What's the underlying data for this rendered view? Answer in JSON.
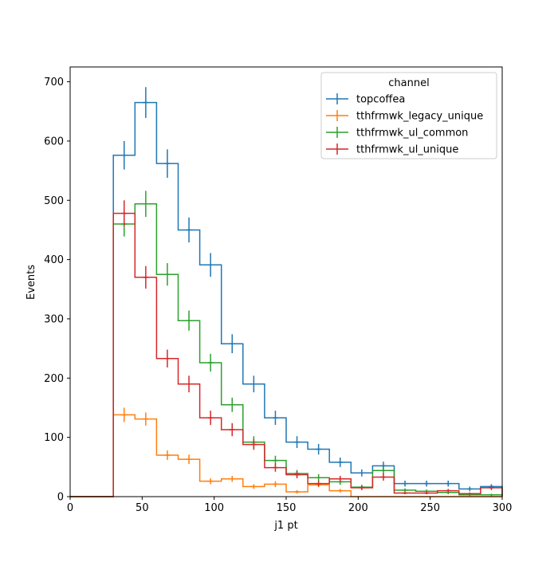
{
  "chart_data": {
    "type": "histogram",
    "title": "",
    "xlabel": "j1 pt",
    "ylabel": "Events",
    "xlim": [
      0,
      300
    ],
    "ylim": [
      0,
      725
    ],
    "xticks": [
      0,
      50,
      100,
      150,
      200,
      250,
      300
    ],
    "yticks": [
      0,
      100,
      200,
      300,
      400,
      500,
      600,
      700
    ],
    "grid": false,
    "legend": {
      "title": "channel",
      "placement": "top-right"
    },
    "bin_edges": [
      0,
      15,
      30,
      45,
      60,
      75,
      90,
      105,
      120,
      135,
      150,
      165,
      180,
      195,
      210,
      225,
      240,
      255,
      270,
      285,
      300
    ],
    "series": [
      {
        "name": "topcoffea",
        "color": "#1f77b4",
        "values": [
          0,
          0,
          576,
          665,
          562,
          450,
          391,
          258,
          190,
          133,
          92,
          80,
          58,
          40,
          52,
          22,
          22,
          22,
          13,
          17
        ],
        "errors": [
          0,
          0,
          24,
          26,
          24,
          21,
          20,
          16,
          14,
          12,
          10,
          9,
          8,
          6,
          7,
          5,
          5,
          5,
          4,
          4
        ]
      },
      {
        "name": "tthfrmwk_legacy_unique",
        "color": "#ff7f0e",
        "values": [
          0,
          0,
          138,
          131,
          70,
          63,
          26,
          30,
          17,
          21,
          8,
          20,
          10,
          0,
          0,
          0,
          0,
          0,
          0,
          0
        ],
        "errors": [
          0,
          0,
          12,
          11,
          8,
          8,
          5,
          5,
          4,
          5,
          3,
          4,
          3,
          0,
          0,
          0,
          0,
          0,
          0,
          0
        ]
      },
      {
        "name": "tthfrmwk_ul_common",
        "color": "#2ca02c",
        "values": [
          0,
          0,
          460,
          494,
          375,
          297,
          226,
          155,
          92,
          61,
          39,
          32,
          25,
          16,
          44,
          11,
          9,
          7,
          3,
          3
        ],
        "errors": [
          0,
          0,
          21,
          22,
          19,
          17,
          15,
          12,
          10,
          8,
          6,
          6,
          5,
          4,
          7,
          3,
          3,
          3,
          2,
          2
        ]
      },
      {
        "name": "tthfrmwk_ul_unique",
        "color": "#d62728",
        "values": [
          0,
          0,
          478,
          370,
          233,
          190,
          133,
          113,
          88,
          49,
          37,
          22,
          30,
          15,
          33,
          6,
          6,
          10,
          5,
          15
        ],
        "errors": [
          0,
          0,
          22,
          19,
          15,
          14,
          12,
          11,
          9,
          7,
          6,
          5,
          5,
          4,
          6,
          2,
          2,
          3,
          2,
          4
        ]
      }
    ]
  }
}
